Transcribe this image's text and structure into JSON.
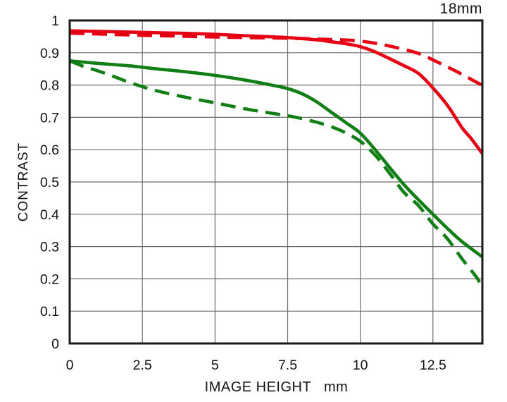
{
  "chart_data": {
    "type": "line",
    "title": "18mm",
    "xlabel": "IMAGE HEIGHT   mm",
    "ylabel": "CONTRAST",
    "xlim": [
      0,
      14.2
    ],
    "ylim": [
      0,
      1
    ],
    "x_ticks": [
      0,
      2.5,
      5,
      7.5,
      10,
      12.5
    ],
    "x_tick_labels": [
      "0",
      "2.5",
      "5",
      "7.5",
      "10",
      "12.5"
    ],
    "y_ticks": [
      0,
      0.1,
      0.2,
      0.3,
      0.4,
      0.5,
      0.6,
      0.7,
      0.8,
      0.9,
      1
    ],
    "y_tick_labels": [
      "0",
      "0.1",
      "0.2",
      "0.3",
      "0.4",
      "0.5",
      "0.6",
      "0.7",
      "0.8",
      "0.9",
      "1"
    ],
    "grid": true,
    "legend_position": "none",
    "series": [
      {
        "id": "red-solid",
        "color": "#e60013",
        "style": "solid",
        "points": [
          [
            0,
            0.968
          ],
          [
            1,
            0.966
          ],
          [
            2.5,
            0.963
          ],
          [
            4,
            0.96
          ],
          [
            5,
            0.957
          ],
          [
            6,
            0.953
          ],
          [
            7.5,
            0.947
          ],
          [
            8.5,
            0.94
          ],
          [
            9,
            0.934
          ],
          [
            9.5,
            0.928
          ],
          [
            10,
            0.919
          ],
          [
            10.5,
            0.903
          ],
          [
            11,
            0.882
          ],
          [
            11.5,
            0.86
          ],
          [
            12,
            0.836
          ],
          [
            12.5,
            0.791
          ],
          [
            13,
            0.737
          ],
          [
            13.5,
            0.668
          ],
          [
            13.8,
            0.636
          ],
          [
            14.2,
            0.588
          ]
        ]
      },
      {
        "id": "red-dashed",
        "color": "#e60013",
        "style": "dashed",
        "points": [
          [
            0,
            0.961
          ],
          [
            1,
            0.958
          ],
          [
            2.5,
            0.954
          ],
          [
            4,
            0.951
          ],
          [
            5,
            0.949
          ],
          [
            6,
            0.947
          ],
          [
            7.5,
            0.945
          ],
          [
            9,
            0.941
          ],
          [
            10,
            0.936
          ],
          [
            11,
            0.921
          ],
          [
            12,
            0.898
          ],
          [
            12.5,
            0.878
          ],
          [
            13,
            0.856
          ],
          [
            13.5,
            0.833
          ],
          [
            14.2,
            0.799
          ]
        ]
      },
      {
        "id": "green-solid",
        "color": "#117f16",
        "style": "solid",
        "points": [
          [
            0,
            0.875
          ],
          [
            1,
            0.867
          ],
          [
            2,
            0.86
          ],
          [
            2.5,
            0.855
          ],
          [
            3,
            0.85
          ],
          [
            4,
            0.841
          ],
          [
            5,
            0.83
          ],
          [
            6,
            0.816
          ],
          [
            7,
            0.799
          ],
          [
            7.5,
            0.789
          ],
          [
            8,
            0.773
          ],
          [
            8.5,
            0.748
          ],
          [
            9,
            0.716
          ],
          [
            9.5,
            0.684
          ],
          [
            10,
            0.651
          ],
          [
            10.5,
            0.601
          ],
          [
            11,
            0.546
          ],
          [
            11.5,
            0.492
          ],
          [
            12,
            0.445
          ],
          [
            12.5,
            0.4
          ],
          [
            13,
            0.356
          ],
          [
            13.5,
            0.315
          ],
          [
            14.2,
            0.268
          ]
        ]
      },
      {
        "id": "green-dashed",
        "color": "#117f16",
        "style": "dashed",
        "points": [
          [
            0,
            0.875
          ],
          [
            0.5,
            0.857
          ],
          [
            1,
            0.843
          ],
          [
            1.5,
            0.827
          ],
          [
            2,
            0.81
          ],
          [
            2.5,
            0.795
          ],
          [
            3,
            0.782
          ],
          [
            4,
            0.762
          ],
          [
            5,
            0.745
          ],
          [
            6,
            0.727
          ],
          [
            7,
            0.712
          ],
          [
            7.5,
            0.705
          ],
          [
            8,
            0.696
          ],
          [
            8.5,
            0.685
          ],
          [
            9,
            0.671
          ],
          [
            9.5,
            0.652
          ],
          [
            10,
            0.626
          ],
          [
            10.5,
            0.584
          ],
          [
            11,
            0.528
          ],
          [
            11.5,
            0.468
          ],
          [
            12,
            0.427
          ],
          [
            12.5,
            0.37
          ],
          [
            13,
            0.324
          ],
          [
            13.5,
            0.262
          ],
          [
            14,
            0.205
          ],
          [
            14.2,
            0.172
          ]
        ]
      }
    ]
  },
  "style_tokens": {
    "grid_color": "#6b6b6b",
    "border_color": "#1a1a1a",
    "text_color": "#111111",
    "red": "#e60013",
    "green": "#117f16"
  }
}
